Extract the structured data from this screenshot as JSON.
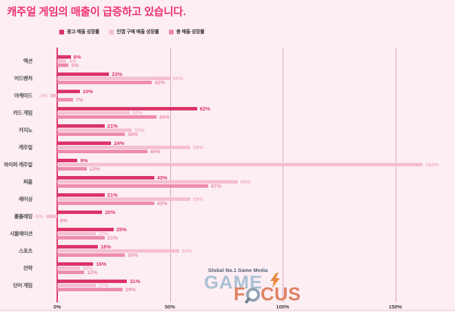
{
  "title": "캐주얼 게임의 매출이 급증하고 있습니다.",
  "colors": {
    "background": "#fceef3",
    "title": "#ee3273",
    "axis": "#dc3468",
    "gridline": "#d8a3bb",
    "tick_text": "#3f3f3f",
    "category_text": "#4c4c4c"
  },
  "legend": {
    "items": [
      {
        "label": "광고 매출 성장률",
        "color": "#dc3468"
      },
      {
        "label": "인앱 구매 매출 성장률",
        "color": "#f5bfd2"
      },
      {
        "label": "총 매출 성장률",
        "color": "#ee8cab"
      }
    ]
  },
  "chart_data": {
    "type": "bar",
    "orientation": "horizontal",
    "title": "캐주얼 게임의 매출이 급증하고 있습니다.",
    "categories": [
      "액션",
      "어드벤처",
      "아케이드",
      "카드 게임",
      "카지노",
      "캐주얼",
      "하이퍼 캐주얼",
      "퍼즐",
      "레이싱",
      "롤플레잉",
      "시뮬레이션",
      "스포츠",
      "전략",
      "단어 게임"
    ],
    "series": [
      {
        "name": "광고 매출 성장률",
        "color": "#dc3468",
        "label_color": "#dc3468",
        "values": [
          6,
          23,
          10,
          62,
          21,
          24,
          9,
          43,
          21,
          20,
          25,
          18,
          16,
          31
        ]
      },
      {
        "name": "인앱 구매 매출 성장률",
        "color": "#f5bfd2",
        "label_color": "#f2b0c8",
        "values": [
          4,
          50,
          -3,
          32,
          33,
          59,
          162,
          80,
          59,
          -5,
          17,
          54,
          10,
          17
        ]
      },
      {
        "name": "총 매출 성장률",
        "color": "#ee8cab",
        "label_color": "#e98aa9",
        "values": [
          5,
          42,
          7,
          44,
          30,
          40,
          13,
          67,
          43,
          0,
          21,
          30,
          12,
          29
        ]
      }
    ],
    "value_suffix": "%",
    "x_ticks": [
      {
        "label": "0%",
        "value": 0
      },
      {
        "label": "50%",
        "value": 50
      },
      {
        "label": "100%",
        "value": 100
      },
      {
        "label": "150%",
        "value": 150
      }
    ],
    "xlim": [
      -11,
      176
    ],
    "grid": "vertical-lines",
    "legend_position": "top-left"
  },
  "watermark": {
    "tagline": "Global No.1 Game Media",
    "word1": "GAME",
    "word2_full": "FOCUS",
    "word2_first": "F",
    "word2_rest": "CUS",
    "colors": {
      "word1": "#abc0d4",
      "word2": "#e08264",
      "tagline": "#47586f",
      "bolt": "#e9883f"
    }
  }
}
